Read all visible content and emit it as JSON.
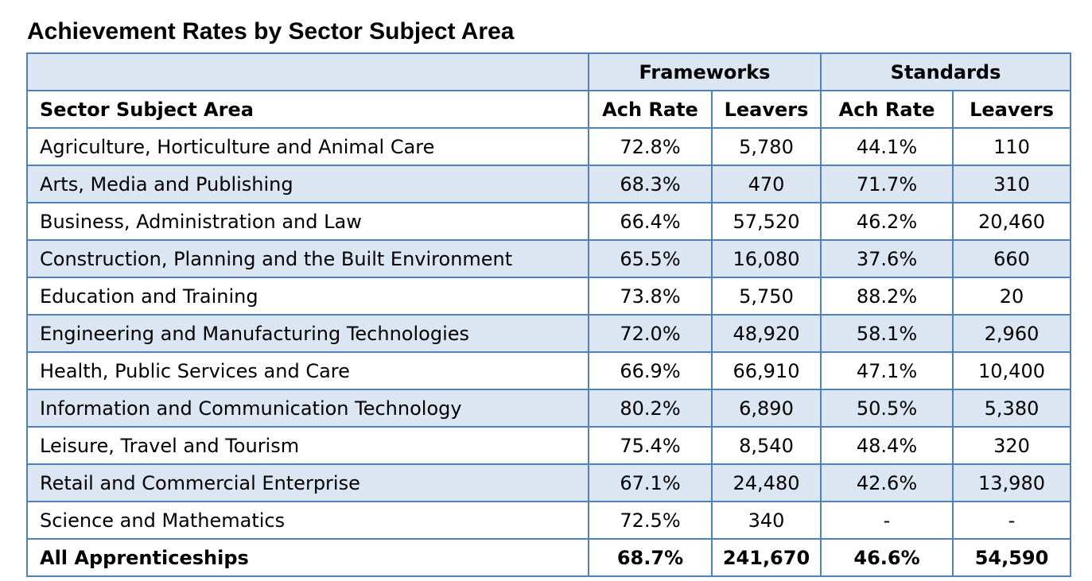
{
  "title": "Achievement Rates by Sector Subject Area",
  "colors": {
    "border": "#4f81bd",
    "shaded_row": "#dce6f2"
  },
  "chart_data": {
    "type": "table",
    "title": "Achievement Rates by Sector Subject Area",
    "column_groups": [
      {
        "label": "",
        "span": 1
      },
      {
        "label": "Frameworks",
        "span": 2
      },
      {
        "label": "Standards",
        "span": 2
      }
    ],
    "columns": [
      "Sector Subject Area",
      "Ach Rate",
      "Leavers",
      "Ach Rate",
      "Leavers"
    ],
    "rows": [
      [
        "Agriculture, Horticulture and Animal Care",
        "72.8%",
        "5,780",
        "44.1%",
        "110"
      ],
      [
        "Arts, Media and Publishing",
        "68.3%",
        "470",
        "71.7%",
        "310"
      ],
      [
        "Business, Administration and Law",
        "66.4%",
        "57,520",
        "46.2%",
        "20,460"
      ],
      [
        "Construction, Planning and the Built Environment",
        "65.5%",
        "16,080",
        "37.6%",
        "660"
      ],
      [
        "Education and Training",
        "73.8%",
        "5,750",
        "88.2%",
        "20"
      ],
      [
        "Engineering and Manufacturing Technologies",
        "72.0%",
        "48,920",
        "58.1%",
        "2,960"
      ],
      [
        "Health, Public Services and Care",
        "66.9%",
        "66,910",
        "47.1%",
        "10,400"
      ],
      [
        "Information and Communication Technology",
        "80.2%",
        "6,890",
        "50.5%",
        "5,380"
      ],
      [
        "Leisure, Travel and Tourism",
        "75.4%",
        "8,540",
        "48.4%",
        "320"
      ],
      [
        "Retail and Commercial Enterprise",
        "67.1%",
        "24,480",
        "42.6%",
        "13,980"
      ],
      [
        "Science and Mathematics",
        "72.5%",
        "340",
        "-",
        "-"
      ]
    ],
    "total": [
      "All Apprenticeships",
      "68.7%",
      "241,670",
      "46.6%",
      "54,590"
    ]
  }
}
